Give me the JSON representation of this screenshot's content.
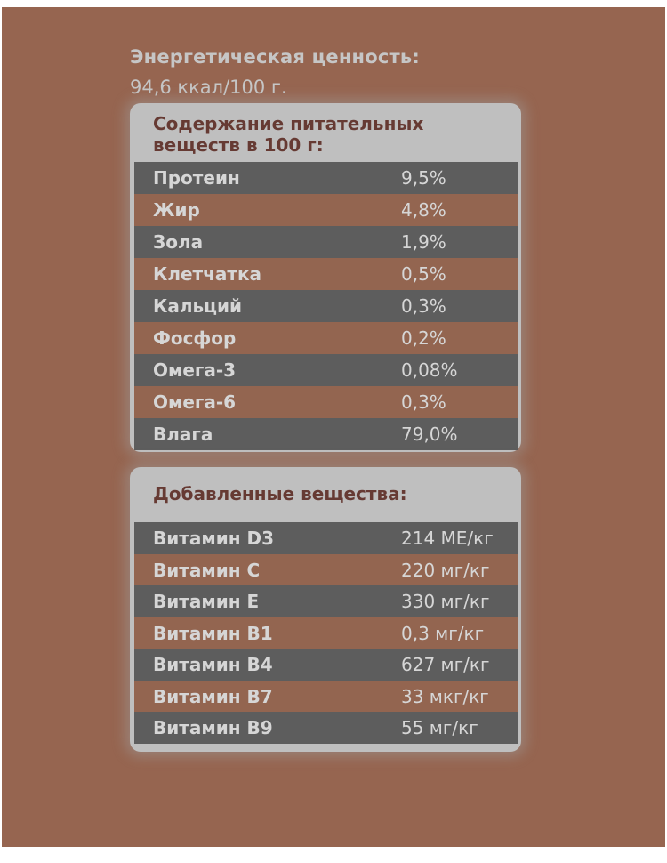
{
  "energy": {
    "title": "Энергетическая ценность:",
    "value": "94,6 ккал/100 г."
  },
  "nutrients": {
    "title_line1": "Содержание питательных",
    "title_line2": "веществ в 100 г:",
    "rows": [
      {
        "name": "Протеин",
        "value": "9,5%"
      },
      {
        "name": "Жир",
        "value": "4,8%"
      },
      {
        "name": "Зола",
        "value": "1,9%"
      },
      {
        "name": "Клетчатка",
        "value": "0,5%"
      },
      {
        "name": "Кальций",
        "value": "0,3%"
      },
      {
        "name": "Фосфор",
        "value": "0,2%"
      },
      {
        "name": "Омега-3",
        "value": "0,08%"
      },
      {
        "name": "Омега-6",
        "value": "0,3%"
      },
      {
        "name": "Влага",
        "value": "79,0%"
      }
    ]
  },
  "additives": {
    "title": "Добавленные вещества:",
    "rows": [
      {
        "name": "Витамин D3",
        "value": "214 МЕ/кг"
      },
      {
        "name": "Витамин C",
        "value": "220 мг/кг"
      },
      {
        "name": "Витамин E",
        "value": "330 мг/кг"
      },
      {
        "name": "Витамин B1",
        "value": "0,3 мг/кг"
      },
      {
        "name": "Витамин B4",
        "value": "627 мг/кг"
      },
      {
        "name": "Витамин B7",
        "value": "33 мкг/кг"
      },
      {
        "name": "Витамин B9",
        "value": "55 мг/кг"
      }
    ]
  },
  "colors": {
    "background": "#966550",
    "card": "#bfbfbf",
    "row_dark": "#5d5d5d",
    "row_light": "#936550",
    "heading_text": "#663a33",
    "light_text": "#d6d6d6"
  }
}
